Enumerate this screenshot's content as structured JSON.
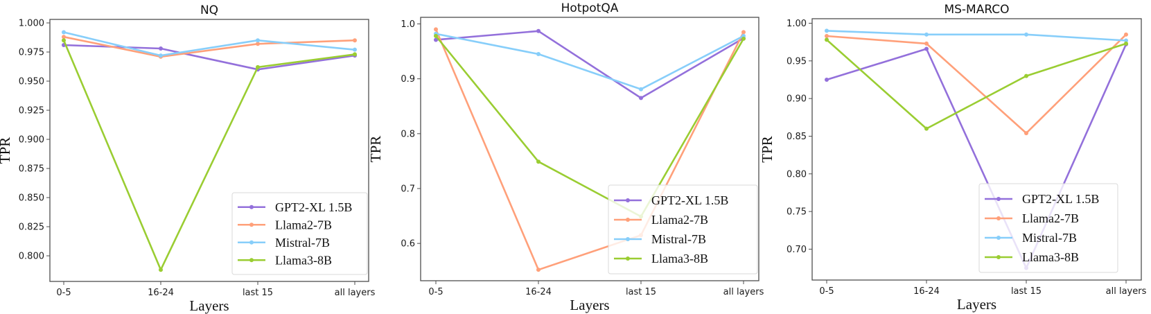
{
  "chart_data": [
    {
      "type": "line",
      "title": "NQ",
      "xlabel": "Layers",
      "ylabel": "TPR",
      "categories": [
        "0-5",
        "16-24",
        "last 15",
        "all layers"
      ],
      "ylim": [
        0.778,
        1.003
      ],
      "yticks": [
        0.8,
        0.825,
        0.85,
        0.875,
        0.9,
        0.925,
        0.95,
        0.975,
        1.0
      ],
      "ytick_labels": [
        "0.800",
        "0.825",
        "0.850",
        "0.875",
        "0.900",
        "0.925",
        "0.950",
        "0.975",
        "1.000"
      ],
      "grid": false,
      "legend_position": "lower-right",
      "series": [
        {
          "name": "GPT2-XL 1.5B",
          "color": "#9370DB",
          "values": [
            0.981,
            0.978,
            0.96,
            0.972
          ]
        },
        {
          "name": "Llama2-7B",
          "color": "#FFA07A",
          "values": [
            0.988,
            0.971,
            0.982,
            0.985
          ]
        },
        {
          "name": "Mistral-7B",
          "color": "#87CEFA",
          "values": [
            0.992,
            0.972,
            0.985,
            0.977
          ]
        },
        {
          "name": "Llama3-8B",
          "color": "#9ACD32",
          "values": [
            0.985,
            0.788,
            0.962,
            0.973
          ]
        }
      ]
    },
    {
      "type": "line",
      "title": "HotpotQA",
      "xlabel": "Layers",
      "ylabel": "TPR",
      "categories": [
        "0-5",
        "16-24",
        "last 15",
        "all layers"
      ],
      "ylim": [
        0.532,
        1.012
      ],
      "yticks": [
        0.6,
        0.7,
        0.8,
        0.9,
        1.0
      ],
      "ytick_labels": [
        "0.6",
        "0.7",
        "0.8",
        "0.9",
        "1.0"
      ],
      "grid": false,
      "legend_position": "lower-right",
      "series": [
        {
          "name": "GPT2-XL 1.5B",
          "color": "#9370DB",
          "values": [
            0.971,
            0.987,
            0.865,
            0.974
          ]
        },
        {
          "name": "Llama2-7B",
          "color": "#FFA07A",
          "values": [
            0.99,
            0.552,
            0.615,
            0.985
          ]
        },
        {
          "name": "Mistral-7B",
          "color": "#87CEFA",
          "values": [
            0.982,
            0.945,
            0.881,
            0.978
          ]
        },
        {
          "name": "Llama3-8B",
          "color": "#9ACD32",
          "values": [
            0.978,
            0.749,
            0.649,
            0.973
          ]
        }
      ]
    },
    {
      "type": "line",
      "title": "MS-MARCO",
      "xlabel": "Layers",
      "ylabel": "TPR",
      "categories": [
        "0-5",
        "16-24",
        "last 15",
        "all layers"
      ],
      "ylim": [
        0.659,
        1.006
      ],
      "yticks": [
        0.7,
        0.75,
        0.8,
        0.85,
        0.9,
        0.95,
        1.0
      ],
      "ytick_labels": [
        "0.70",
        "0.75",
        "0.80",
        "0.85",
        "0.90",
        "0.95",
        "1.00"
      ],
      "grid": false,
      "legend_position": "lower-right",
      "series": [
        {
          "name": "GPT2-XL 1.5B",
          "color": "#9370DB",
          "values": [
            0.925,
            0.966,
            0.675,
            0.972
          ]
        },
        {
          "name": "Llama2-7B",
          "color": "#FFA07A",
          "values": [
            0.983,
            0.973,
            0.854,
            0.985
          ]
        },
        {
          "name": "Mistral-7B",
          "color": "#87CEFA",
          "values": [
            0.99,
            0.985,
            0.985,
            0.977
          ]
        },
        {
          "name": "Llama3-8B",
          "color": "#9ACD32",
          "values": [
            0.978,
            0.86,
            0.93,
            0.973
          ]
        }
      ]
    }
  ]
}
